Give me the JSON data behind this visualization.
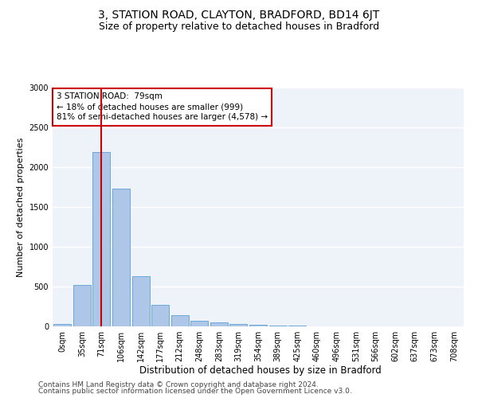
{
  "title": "3, STATION ROAD, CLAYTON, BRADFORD, BD14 6JT",
  "subtitle": "Size of property relative to detached houses in Bradford",
  "xlabel": "Distribution of detached houses by size in Bradford",
  "ylabel": "Number of detached properties",
  "bar_color": "#aec6e8",
  "bar_edge_color": "#5a9fd4",
  "background_color": "#eef2f9",
  "grid_color": "#ffffff",
  "annotation_box_color": "#cc0000",
  "vline_color": "#cc0000",
  "vline_x": 2,
  "annotation_text": "3 STATION ROAD:  79sqm\n← 18% of detached houses are smaller (999)\n81% of semi-detached houses are larger (4,578) →",
  "categories": [
    "0sqm",
    "35sqm",
    "71sqm",
    "106sqm",
    "142sqm",
    "177sqm",
    "212sqm",
    "248sqm",
    "283sqm",
    "319sqm",
    "354sqm",
    "389sqm",
    "425sqm",
    "460sqm",
    "496sqm",
    "531sqm",
    "566sqm",
    "602sqm",
    "637sqm",
    "673sqm",
    "708sqm"
  ],
  "values": [
    30,
    525,
    2195,
    1730,
    635,
    270,
    145,
    70,
    50,
    30,
    20,
    15,
    10,
    5,
    5,
    3,
    2,
    1,
    1,
    1,
    0
  ],
  "ylim": [
    0,
    3000
  ],
  "yticks": [
    0,
    500,
    1000,
    1500,
    2000,
    2500,
    3000
  ],
  "footer_line1": "Contains HM Land Registry data © Crown copyright and database right 2024.",
  "footer_line2": "Contains public sector information licensed under the Open Government Licence v3.0.",
  "title_fontsize": 10,
  "subtitle_fontsize": 9,
  "xlabel_fontsize": 8.5,
  "ylabel_fontsize": 8,
  "tick_fontsize": 7,
  "footer_fontsize": 6.5,
  "annotation_fontsize": 7.5
}
